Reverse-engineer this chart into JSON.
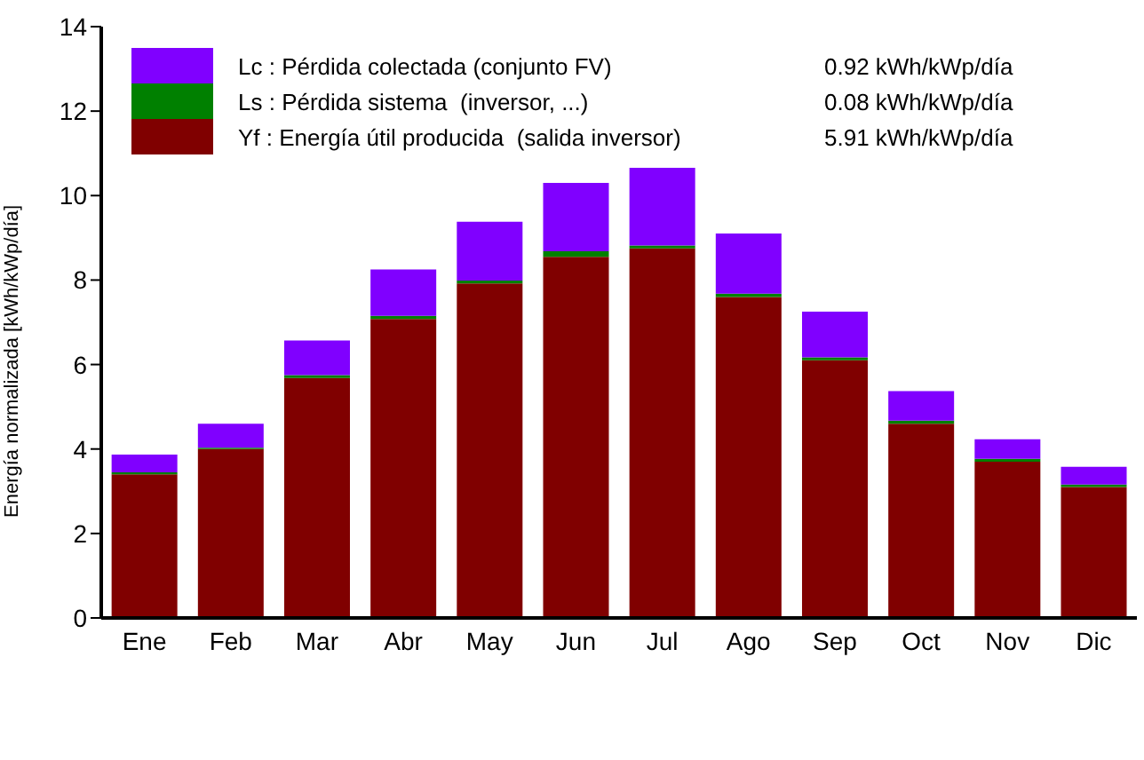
{
  "chart_data": {
    "type": "bar",
    "stacked": true,
    "ylabel": "Energía      normalizada      [kWh/kWp/día]",
    "categories": [
      "Ene",
      "Feb",
      "Mar",
      "Abr",
      "May",
      "Jun",
      "Jul",
      "Ago",
      "Sep",
      "Oct",
      "Nov",
      "Dic"
    ],
    "series": [
      {
        "name": "Yf : Energía útil producida  (salida inversor)",
        "color": "#800000",
        "values": [
          3.4,
          4.0,
          5.68,
          7.08,
          7.92,
          8.55,
          8.75,
          7.6,
          6.1,
          4.6,
          3.7,
          3.1
        ]
      },
      {
        "name": "Ls : Pérdida sistema  (inversor, ...)",
        "color": "#008000",
        "values": [
          0.05,
          0.03,
          0.07,
          0.07,
          0.07,
          0.13,
          0.07,
          0.08,
          0.07,
          0.07,
          0.07,
          0.06
        ]
      },
      {
        "name": "Lc : Pérdida colectada (conjunto FV)",
        "color": "#8000ff",
        "values": [
          0.42,
          0.57,
          0.82,
          1.1,
          1.39,
          1.62,
          1.84,
          1.42,
          1.08,
          0.7,
          0.46,
          0.42
        ]
      }
    ],
    "annotations": [
      "5.91 kWh/kWp/día",
      "0.08 kWh/kWp/día",
      "0.92 kWh/kWp/día"
    ],
    "ylim": [
      0,
      14
    ],
    "yticks": [
      0,
      2,
      4,
      6,
      8,
      10,
      12,
      14
    ],
    "grid": false,
    "legend": "top left"
  }
}
